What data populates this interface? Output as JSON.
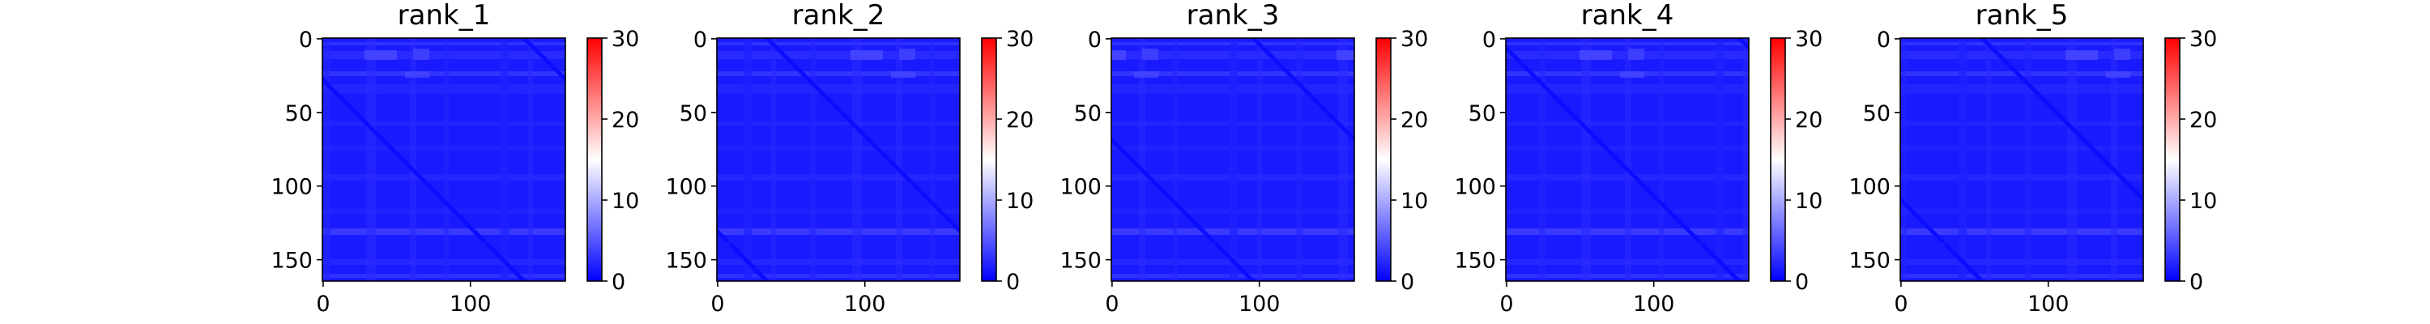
{
  "chart_data": [
    {
      "type": "heatmap",
      "title": "rank_1",
      "x_ticks": [
        "0",
        "100"
      ],
      "y_ticks": [
        "0",
        "50",
        "100",
        "150"
      ],
      "matrix_size": 165,
      "colorbar": {
        "cmap": "bwr",
        "vmin": 0,
        "vmax": 30,
        "ticks": [
          "0",
          "10",
          "20",
          "30"
        ]
      }
    },
    {
      "type": "heatmap",
      "title": "rank_2",
      "x_ticks": [
        "0",
        "100"
      ],
      "y_ticks": [
        "0",
        "50",
        "100",
        "150"
      ],
      "matrix_size": 165,
      "colorbar": {
        "cmap": "bwr",
        "vmin": 0,
        "vmax": 30,
        "ticks": [
          "0",
          "10",
          "20",
          "30"
        ]
      }
    },
    {
      "type": "heatmap",
      "title": "rank_3",
      "x_ticks": [
        "0",
        "100"
      ],
      "y_ticks": [
        "0",
        "50",
        "100",
        "150"
      ],
      "matrix_size": 165,
      "colorbar": {
        "cmap": "bwr",
        "vmin": 0,
        "vmax": 30,
        "ticks": [
          "0",
          "10",
          "20",
          "30"
        ]
      }
    },
    {
      "type": "heatmap",
      "title": "rank_4",
      "x_ticks": [
        "0",
        "100"
      ],
      "y_ticks": [
        "0",
        "50",
        "100",
        "150"
      ],
      "matrix_size": 165,
      "colorbar": {
        "cmap": "bwr",
        "vmin": 0,
        "vmax": 30,
        "ticks": [
          "0",
          "10",
          "20",
          "30"
        ]
      }
    },
    {
      "type": "heatmap",
      "title": "rank_5",
      "x_ticks": [
        "0",
        "100"
      ],
      "y_ticks": [
        "0",
        "50",
        "100",
        "150"
      ],
      "matrix_size": 165,
      "colorbar": {
        "cmap": "bwr",
        "vmin": 0,
        "vmax": 30,
        "ticks": [
          "0",
          "10",
          "20",
          "30"
        ]
      }
    }
  ],
  "colors": {
    "low": "#0000ff",
    "mid": "#ffffff",
    "high": "#ff0000",
    "field": "#1a1aff",
    "field_light": "#3a3aff",
    "diagonal": "#0c0cff"
  }
}
